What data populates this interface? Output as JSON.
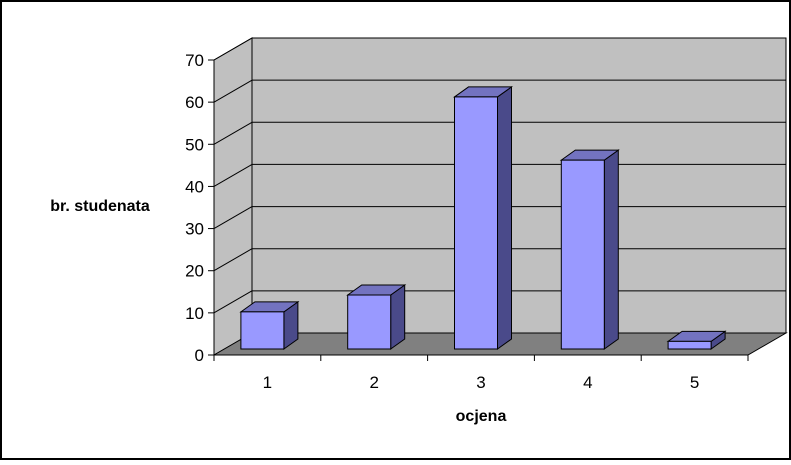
{
  "chart_data": {
    "type": "bar",
    "style": "3d-column",
    "categories": [
      "1",
      "2",
      "3",
      "4",
      "5"
    ],
    "series": [
      {
        "values": [
          10,
          14,
          61,
          46,
          3
        ]
      }
    ],
    "xlabel": "ocjena",
    "ylabel": "br. studenata",
    "ylim": [
      0,
      70
    ],
    "yticks": [
      "0",
      "10",
      "20",
      "30",
      "40",
      "50",
      "60",
      "70"
    ],
    "grid": true,
    "legend": "none"
  },
  "colors": {
    "bar_front": "#9999ff",
    "bar_side": "#4a4a8a",
    "bar_top": "#7373c0",
    "back_wall": "#c0c0c0",
    "side_wall": "#c0c0c0",
    "floor": "#808080",
    "gridline": "#000000",
    "frame": "#000000"
  }
}
